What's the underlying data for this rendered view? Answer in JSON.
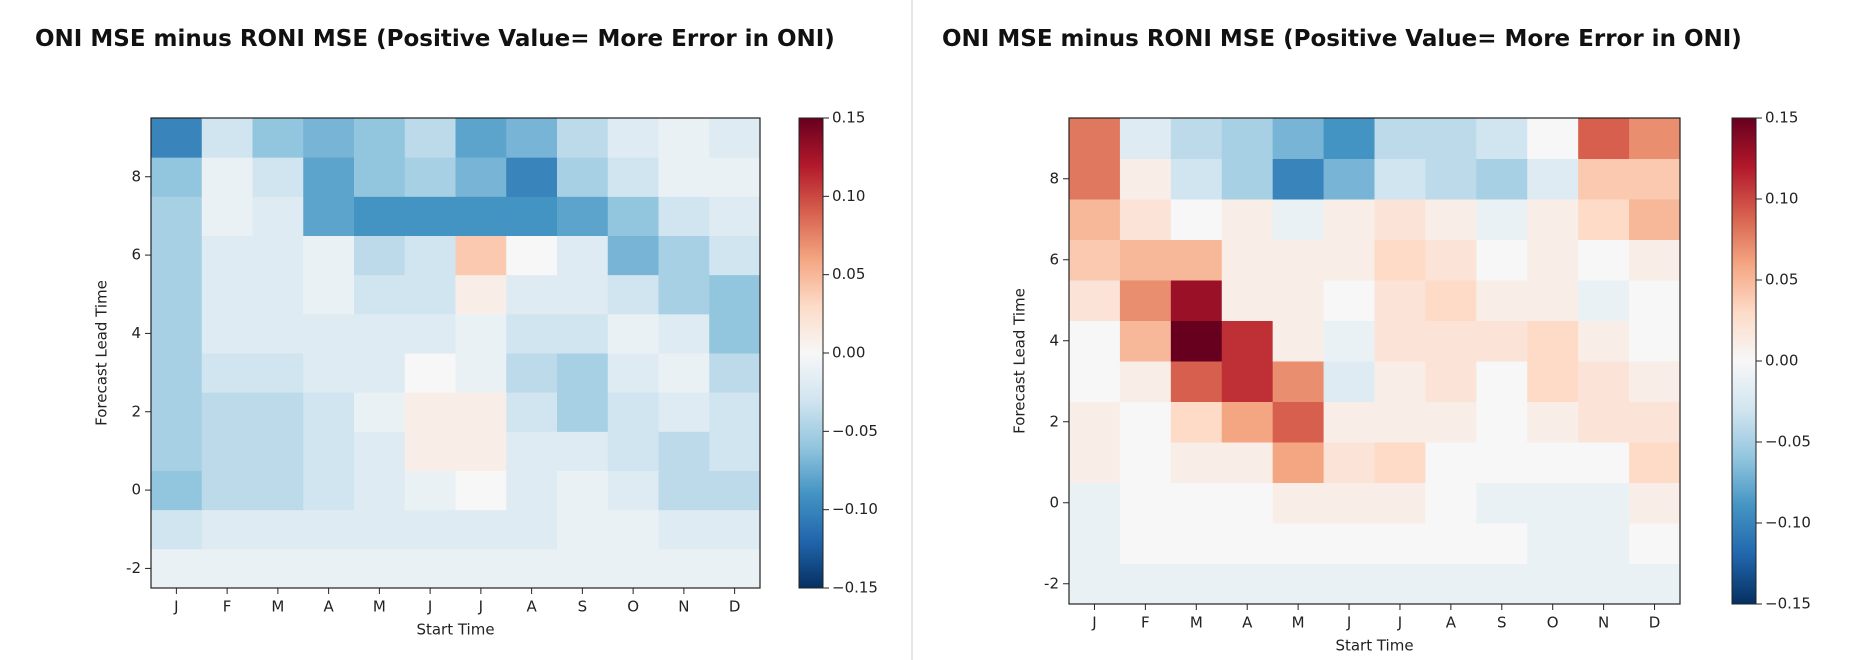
{
  "chart_data": [
    {
      "type": "heatmap",
      "title": "ONI MSE minus RONI MSE (Positive Value= More Error in ONI)",
      "xlabel": "Start Time",
      "ylabel": "Forecast Lead Time",
      "categories": [
        "J",
        "F",
        "M",
        "A",
        "M",
        "J",
        "J",
        "A",
        "S",
        "O",
        "N",
        "D"
      ],
      "y": [
        -2,
        -1,
        0,
        1,
        2,
        3,
        4,
        5,
        6,
        7,
        8,
        9
      ],
      "ylim": [
        -2.5,
        9.5
      ],
      "yticks": [
        -2,
        0,
        2,
        4,
        6,
        8
      ],
      "colormap": "RdBu_r",
      "clim": [
        -0.15,
        0.15
      ],
      "cticks": [
        {
          "value": -0.15,
          "label": "−0.15"
        },
        {
          "value": -0.1,
          "label": "−0.10"
        },
        {
          "value": -0.05,
          "label": "−0.05"
        },
        {
          "value": 0,
          "label": "0.00"
        },
        0.05,
        {
          "value": 0.1,
          "label": "0.10"
        },
        0.15
      ],
      "z": [
        [
          -0.01,
          -0.01,
          -0.01,
          -0.01,
          -0.01,
          -0.01,
          -0.01,
          -0.01,
          -0.01,
          -0.01,
          -0.01,
          -0.01
        ],
        [
          -0.03,
          -0.02,
          -0.02,
          -0.02,
          -0.02,
          -0.02,
          -0.02,
          -0.02,
          -0.01,
          -0.01,
          -0.02,
          -0.02
        ],
        [
          -0.06,
          -0.04,
          -0.04,
          -0.03,
          -0.02,
          -0.01,
          0.0,
          -0.02,
          -0.01,
          -0.02,
          -0.04,
          -0.04
        ],
        [
          -0.05,
          -0.04,
          -0.04,
          -0.03,
          -0.02,
          0.01,
          0.01,
          -0.02,
          -0.02,
          -0.03,
          -0.04,
          -0.03
        ],
        [
          -0.05,
          -0.04,
          -0.04,
          -0.03,
          -0.01,
          0.01,
          0.01,
          -0.03,
          -0.05,
          -0.03,
          -0.02,
          -0.03
        ],
        [
          -0.05,
          -0.03,
          -0.03,
          -0.02,
          -0.02,
          0.0,
          -0.01,
          -0.04,
          -0.05,
          -0.02,
          -0.01,
          -0.04
        ],
        [
          -0.05,
          -0.02,
          -0.02,
          -0.02,
          -0.02,
          -0.02,
          -0.01,
          -0.03,
          -0.03,
          -0.01,
          -0.02,
          -0.06
        ],
        [
          -0.05,
          -0.02,
          -0.02,
          -0.01,
          -0.03,
          -0.03,
          0.01,
          -0.02,
          -0.02,
          -0.03,
          -0.05,
          -0.06
        ],
        [
          -0.05,
          -0.02,
          -0.02,
          -0.01,
          -0.04,
          -0.03,
          0.04,
          0.0,
          -0.02,
          -0.07,
          -0.05,
          -0.03
        ],
        [
          -0.05,
          -0.01,
          -0.02,
          -0.08,
          -0.09,
          -0.09,
          -0.09,
          -0.09,
          -0.08,
          -0.06,
          -0.03,
          -0.02
        ],
        [
          -0.06,
          -0.01,
          -0.03,
          -0.08,
          -0.06,
          -0.05,
          -0.07,
          -0.1,
          -0.05,
          -0.03,
          -0.01,
          -0.01
        ],
        [
          -0.1,
          -0.03,
          -0.06,
          -0.07,
          -0.06,
          -0.04,
          -0.08,
          -0.07,
          -0.04,
          -0.02,
          -0.01,
          -0.02
        ]
      ]
    },
    {
      "type": "heatmap",
      "title": "ONI MSE minus RONI MSE (Positive Value= More Error in ONI)",
      "xlabel": "Start Time",
      "ylabel": "Forecast Lead Time",
      "categories": [
        "J",
        "F",
        "M",
        "A",
        "M",
        "J",
        "J",
        "A",
        "S",
        "O",
        "N",
        "D"
      ],
      "y": [
        -2,
        -1,
        0,
        1,
        2,
        3,
        4,
        5,
        6,
        7,
        8,
        9
      ],
      "ylim": [
        -2.5,
        9.5
      ],
      "yticks": [
        -2,
        0,
        2,
        4,
        6,
        8
      ],
      "colormap": "RdBu_r",
      "clim": [
        -0.15,
        0.15
      ],
      "cticks": [
        {
          "value": -0.15,
          "label": "−0.15"
        },
        {
          "value": -0.1,
          "label": "−0.10"
        },
        {
          "value": -0.05,
          "label": "−0.05"
        },
        {
          "value": 0,
          "label": "0.00"
        },
        0.05,
        {
          "value": 0.1,
          "label": "0.10"
        },
        0.15
      ],
      "z": [
        [
          -0.01,
          -0.01,
          -0.01,
          -0.01,
          -0.01,
          -0.01,
          -0.01,
          -0.01,
          -0.01,
          -0.01,
          -0.01,
          -0.01
        ],
        [
          -0.01,
          0.0,
          0.0,
          0.0,
          0.0,
          0.0,
          0.0,
          0.0,
          0.0,
          -0.01,
          -0.01,
          0.0
        ],
        [
          -0.01,
          0.0,
          0.0,
          0.0,
          0.01,
          0.01,
          0.01,
          0.0,
          -0.01,
          -0.01,
          -0.01,
          0.01
        ],
        [
          0.01,
          0.0,
          0.01,
          0.01,
          0.06,
          0.02,
          0.03,
          0.0,
          0.0,
          0.0,
          0.0,
          0.03
        ],
        [
          0.01,
          0.0,
          0.03,
          0.06,
          0.09,
          0.01,
          0.01,
          0.01,
          0.0,
          0.01,
          0.02,
          0.02
        ],
        [
          0.0,
          0.01,
          0.09,
          0.11,
          0.07,
          -0.02,
          0.01,
          0.02,
          0.0,
          0.03,
          0.02,
          0.01
        ],
        [
          0.0,
          0.05,
          0.15,
          0.11,
          0.01,
          -0.01,
          0.02,
          0.02,
          0.02,
          0.03,
          0.01,
          0.0
        ],
        [
          0.02,
          0.07,
          0.13,
          0.01,
          0.01,
          0.0,
          0.02,
          0.03,
          0.01,
          0.01,
          -0.01,
          0.0
        ],
        [
          0.04,
          0.05,
          0.05,
          0.01,
          0.01,
          0.01,
          0.03,
          0.02,
          0.0,
          0.01,
          0.0,
          0.01
        ],
        [
          0.05,
          0.02,
          0.0,
          0.01,
          -0.01,
          0.01,
          0.02,
          0.01,
          -0.01,
          0.01,
          0.03,
          0.05
        ],
        [
          0.08,
          0.01,
          -0.03,
          -0.05,
          -0.1,
          -0.07,
          -0.03,
          -0.04,
          -0.05,
          -0.02,
          0.04,
          0.04
        ],
        [
          0.08,
          -0.02,
          -0.04,
          -0.05,
          -0.07,
          -0.09,
          -0.04,
          -0.04,
          -0.03,
          0.0,
          0.09,
          0.07
        ]
      ]
    }
  ]
}
